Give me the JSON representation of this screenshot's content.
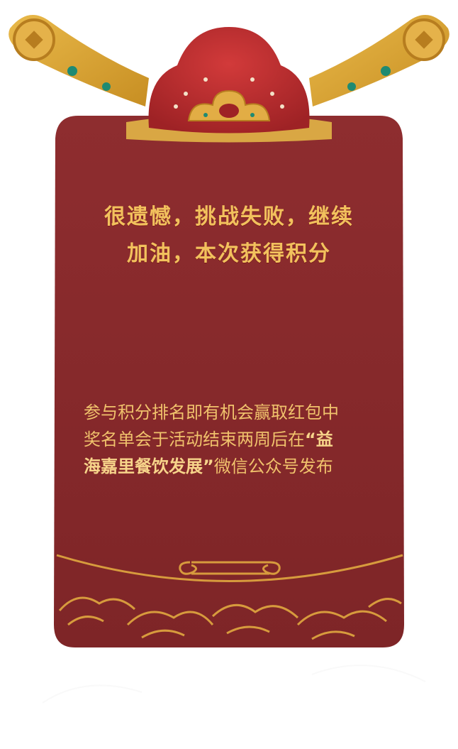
{
  "result": {
    "headline_line1": "很遗憾，挑战失败，继续",
    "headline_line2": "加油，本次获得积分"
  },
  "notice": {
    "text_line1": "参与积分排名即有机会赢取红包中",
    "text_line2": "奖名单会于活动结束两周后在",
    "brand_open": "“益",
    "brand_line3": "海嘉里餐饮发展”",
    "text_end": "微信公众号发布"
  },
  "colors": {
    "card_red": "#8c2a2c",
    "gold": "#f2c15d",
    "teal": "#1f8a72"
  },
  "icons": [
    "coin-icon",
    "gold-hat-icon",
    "cloud-wave-icon",
    "scroll-ornament-icon"
  ]
}
